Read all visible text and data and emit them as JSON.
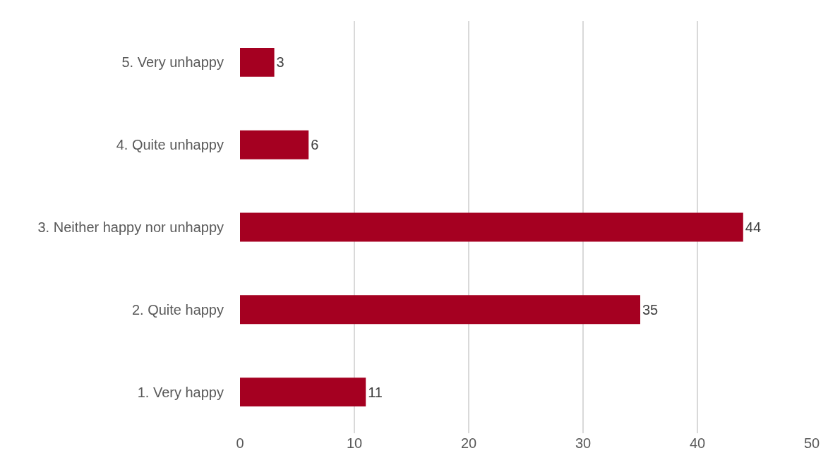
{
  "chart_data": {
    "type": "bar",
    "orientation": "horizontal",
    "categories": [
      "5. Very unhappy",
      "4. Quite unhappy",
      "3. Neither happy nor unhappy",
      "2. Quite happy",
      "1. Very happy"
    ],
    "values": [
      3,
      6,
      44,
      35,
      11
    ],
    "color": "#a50021",
    "xlim": [
      0,
      50
    ],
    "xticks": [
      0,
      10,
      20,
      30,
      40,
      50
    ],
    "grid": "x",
    "data_labels": true
  }
}
